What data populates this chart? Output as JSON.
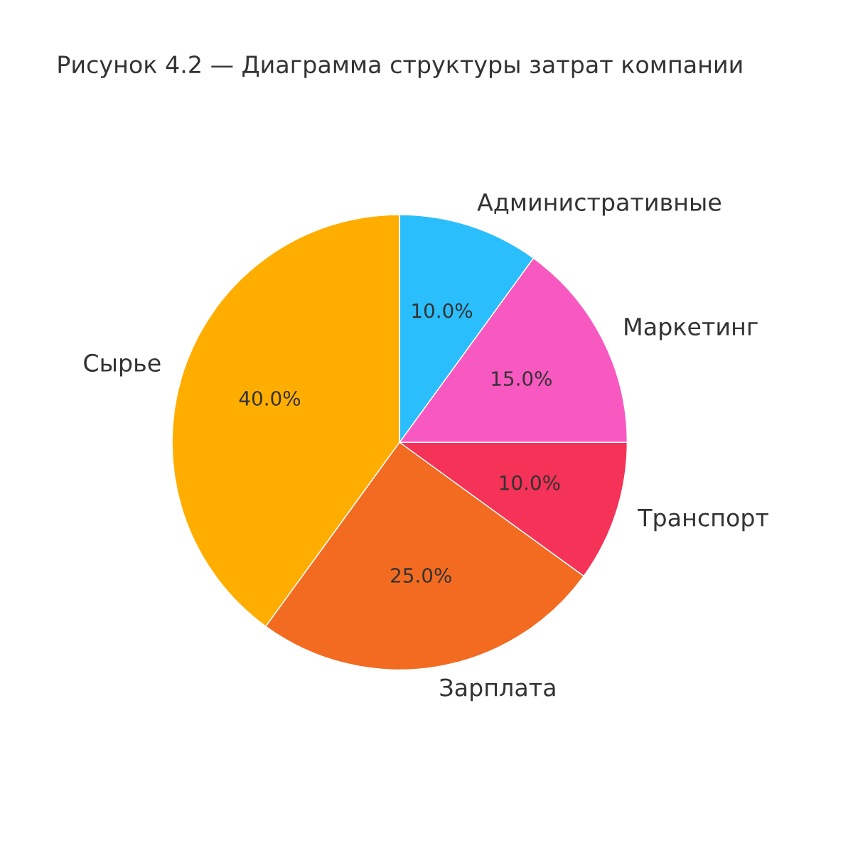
{
  "chart_data": {
    "type": "pie",
    "title": "Рисунок 4.2 — Диаграмма структуры затрат компании",
    "categories": [
      "Сырье",
      "Зарплата",
      "Транспорт",
      "Маркетинг",
      "Административные"
    ],
    "values": [
      40,
      25,
      10,
      15,
      10
    ],
    "colors": [
      "#ffae00",
      "#f26b21",
      "#f53257",
      "#f859c1",
      "#2bbefd"
    ],
    "value_labels": [
      "40.0%",
      "25.0%",
      "10.0%",
      "15.0%",
      "10.0%"
    ]
  }
}
